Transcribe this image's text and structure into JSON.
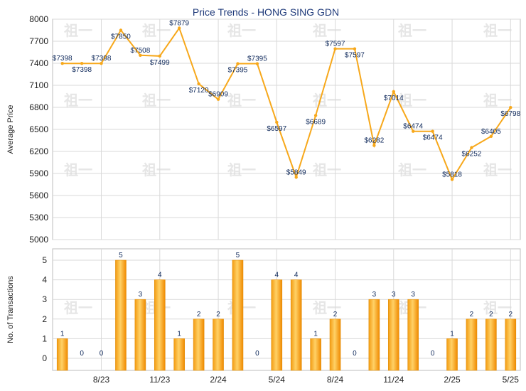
{
  "chart_data": [
    {
      "type": "line",
      "title": "Price Trends - HONG SING GDN",
      "ylabel": "Average Price",
      "ylim": [
        5000,
        8000
      ],
      "yticks": [
        "8000",
        "7700",
        "7400",
        "7100",
        "6800",
        "6500",
        "6200",
        "5900",
        "5600",
        "5300",
        "5000"
      ],
      "color": "#f7a81b",
      "values": [
        7398,
        7398,
        7398,
        7850,
        7508,
        7499,
        7879,
        7120,
        6909,
        7395,
        7395,
        6597,
        5849,
        6689,
        7597,
        7597,
        6282,
        7014,
        6474,
        6474,
        5818,
        6252,
        6405,
        6798
      ],
      "labels": [
        "$7398",
        "$7398",
        "$7398",
        "$7850",
        "$7508",
        "$7499",
        "$7879",
        "$7120",
        "$6909",
        "$7395",
        "$7395",
        "$6597",
        "$5849",
        "$6689",
        "$7597",
        "$7597",
        "$6282",
        "$7014",
        "$6474",
        "$6474",
        "$5818",
        "$6252",
        "$6405",
        "$6798"
      ]
    },
    {
      "type": "bar",
      "ylabel": "No. of Transactions",
      "ylim": [
        0,
        5
      ],
      "yticks": [
        "5",
        "4",
        "3",
        "2",
        "1",
        "0"
      ],
      "color": "#f7a81b",
      "values": [
        1,
        0,
        0,
        5,
        3,
        4,
        1,
        2,
        2,
        5,
        0,
        4,
        4,
        1,
        2,
        0,
        3,
        3,
        3,
        0,
        1,
        2,
        2,
        2
      ],
      "xticks": [
        {
          "index": 2,
          "label": "8/23"
        },
        {
          "index": 5,
          "label": "11/23"
        },
        {
          "index": 8,
          "label": "2/24"
        },
        {
          "index": 11,
          "label": "5/24"
        },
        {
          "index": 14,
          "label": "8/24"
        },
        {
          "index": 17,
          "label": "11/24"
        },
        {
          "index": 20,
          "label": "2/25"
        },
        {
          "index": 23,
          "label": "5/25"
        }
      ]
    }
  ]
}
